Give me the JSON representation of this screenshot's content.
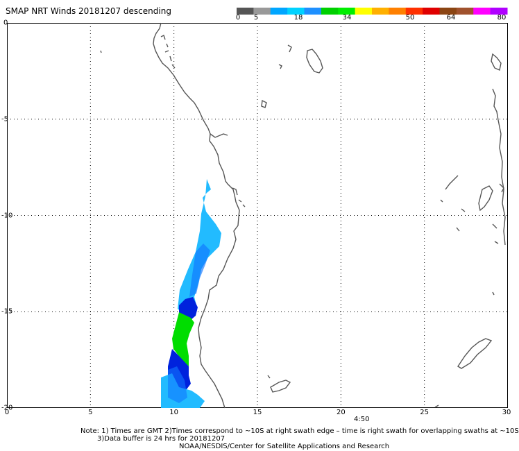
{
  "header": {
    "title": "SMAP NRT Winds  20181207 descending"
  },
  "colorbar": {
    "labels": [
      "0",
      "5",
      "18",
      "34",
      "50",
      "64",
      "80"
    ],
    "colors": [
      "#555555",
      "#999999",
      "#00a6ff",
      "#00d2ff",
      "#1e90ff",
      "#00d000",
      "#00ee00",
      "#ffff00",
      "#ffb000",
      "#ff8000",
      "#ff3000",
      "#e00000",
      "#8b4513",
      "#a0522d",
      "#ff00ff",
      "#b000ff"
    ]
  },
  "map": {
    "lat_labels": [
      "0",
      "-5",
      "-10",
      "-15",
      "-20"
    ],
    "lon_labels": [
      "0",
      "5",
      "10",
      "15",
      "20",
      "25",
      "30"
    ],
    "time_label": "4:50",
    "swath_colors": {
      "light": "#22bbff",
      "mid": "#1177ff",
      "dark": "#0022dd",
      "green": "#00dd00"
    }
  },
  "footer": {
    "note_line1": "Note: 1) Times are GMT  2)Times correspond to ~10S at right swath edge – time is right swath for overlapping swaths at ~10S",
    "note_line2": "3)Data buffer is 24 hrs for 20181207",
    "note_line3": "NOAA/NESDIS/Center for Satellite Applications and Research"
  }
}
